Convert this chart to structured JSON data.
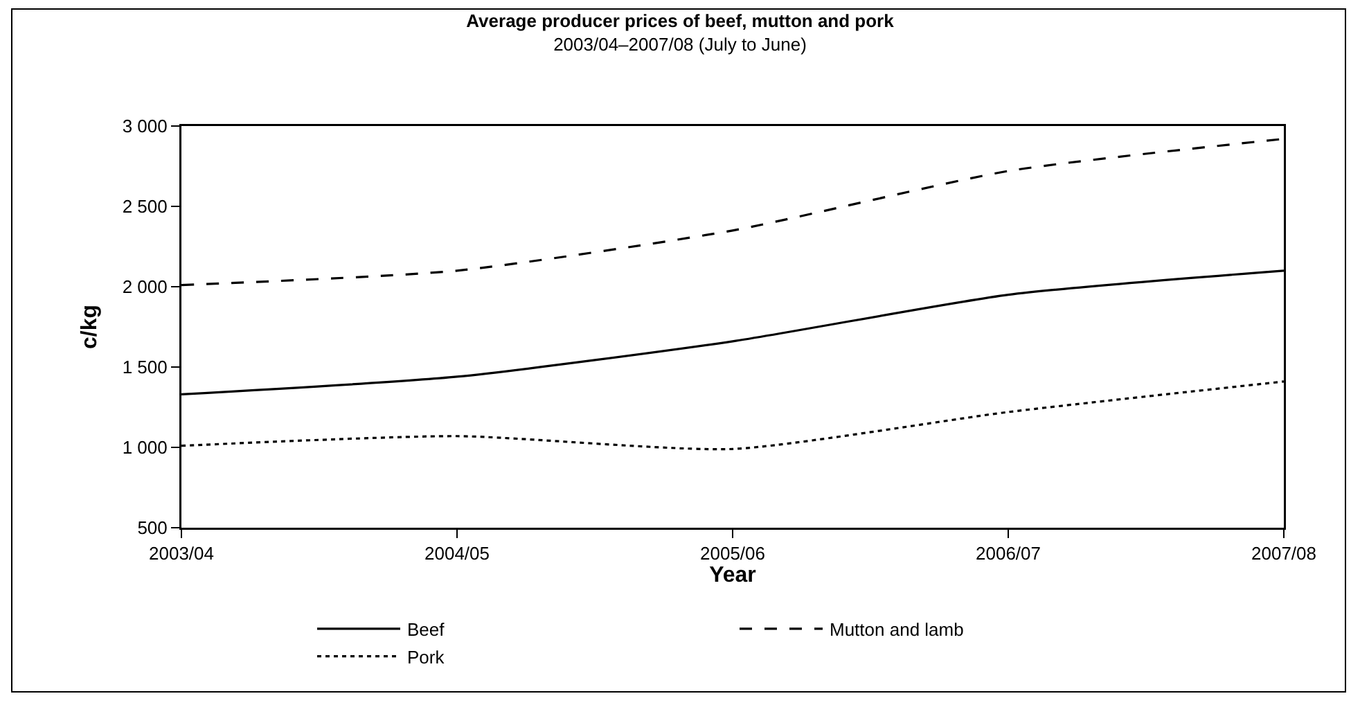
{
  "chart_data": {
    "type": "line",
    "title": "Average producer prices of beef, mutton and pork",
    "subtitle": "2003/04–2007/08 (July to June)",
    "xlabel": "Year",
    "ylabel": "c/kg",
    "categories": [
      "2003/04",
      "2004/05",
      "2005/06",
      "2006/07",
      "2007/08"
    ],
    "series": [
      {
        "name": "Beef",
        "color": "#000000",
        "line_style": "solid",
        "values": [
          1330,
          1440,
          1660,
          1950,
          2100
        ]
      },
      {
        "name": "Mutton and lamb",
        "color": "#000000",
        "line_style": "dashed",
        "values": [
          2010,
          2100,
          2350,
          2720,
          2920
        ]
      },
      {
        "name": "Pork",
        "color": "#000000",
        "line_style": "dotted",
        "values": [
          1010,
          1070,
          990,
          1220,
          1410
        ]
      }
    ],
    "ylim": [
      500,
      3000
    ],
    "yticks": [
      {
        "value": 500,
        "label": "500"
      },
      {
        "value": 1000,
        "label": "1 000"
      },
      {
        "value": 1500,
        "label": "1 500"
      },
      {
        "value": 2000,
        "label": "2 000"
      },
      {
        "value": 2500,
        "label": "2 500"
      },
      {
        "value": 3000,
        "label": "3 000"
      }
    ],
    "grid": false,
    "legend": "bottom",
    "marker": "none"
  }
}
